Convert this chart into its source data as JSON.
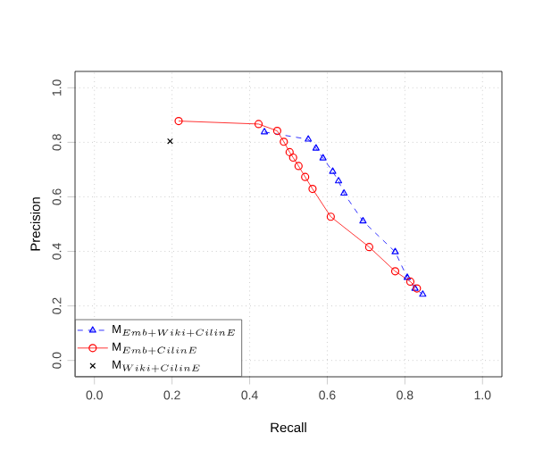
{
  "chart_data": {
    "type": "line",
    "xlabel": "Recall",
    "ylabel": "Precision",
    "xlim": [
      -0.05,
      1.05
    ],
    "ylim": [
      -0.06,
      1.06
    ],
    "xticks": [
      {
        "value": 0,
        "label": "0.0"
      },
      0.2,
      0.4,
      0.6,
      0.8,
      {
        "value": 1,
        "label": "1.0"
      }
    ],
    "yticks": [
      {
        "value": 0,
        "label": "0.0"
      },
      0.2,
      0.4,
      0.6,
      0.8,
      {
        "value": 1,
        "label": "1.0"
      }
    ],
    "grid": true,
    "legend": "bottom left",
    "series": [
      {
        "name": "\\mathrm{M}_{Emb+Wiki+CilinE}",
        "color": "#0000ff",
        "marker": "triangle",
        "line_style": "dashed",
        "x": [
          0.438,
          0.551,
          0.571,
          0.589,
          0.614,
          0.629,
          0.643,
          0.692,
          0.775,
          0.806,
          0.826,
          0.846
        ],
        "values": [
          0.838,
          0.811,
          0.778,
          0.742,
          0.693,
          0.658,
          0.613,
          0.511,
          0.398,
          0.304,
          0.264,
          0.242
        ]
      },
      {
        "name": "\\mathrm{M}_{Emb+CilinE}",
        "color": "#ff0000",
        "marker": "circle",
        "line_style": "solid",
        "x": [
          0.217,
          0.423,
          0.471,
          0.488,
          0.503,
          0.512,
          0.526,
          0.543,
          0.562,
          0.609,
          0.708,
          0.775,
          0.814,
          0.831
        ],
        "values": [
          0.878,
          0.867,
          0.842,
          0.802,
          0.764,
          0.744,
          0.713,
          0.673,
          0.629,
          0.527,
          0.416,
          0.327,
          0.289,
          0.264
        ]
      },
      {
        "name": "\\mathrm{M}_{Wiki+CilinE}",
        "type": "scatter",
        "color": "#000000",
        "marker": "cross",
        "x": [
          0.195
        ],
        "values": [
          0.804
        ]
      }
    ]
  }
}
